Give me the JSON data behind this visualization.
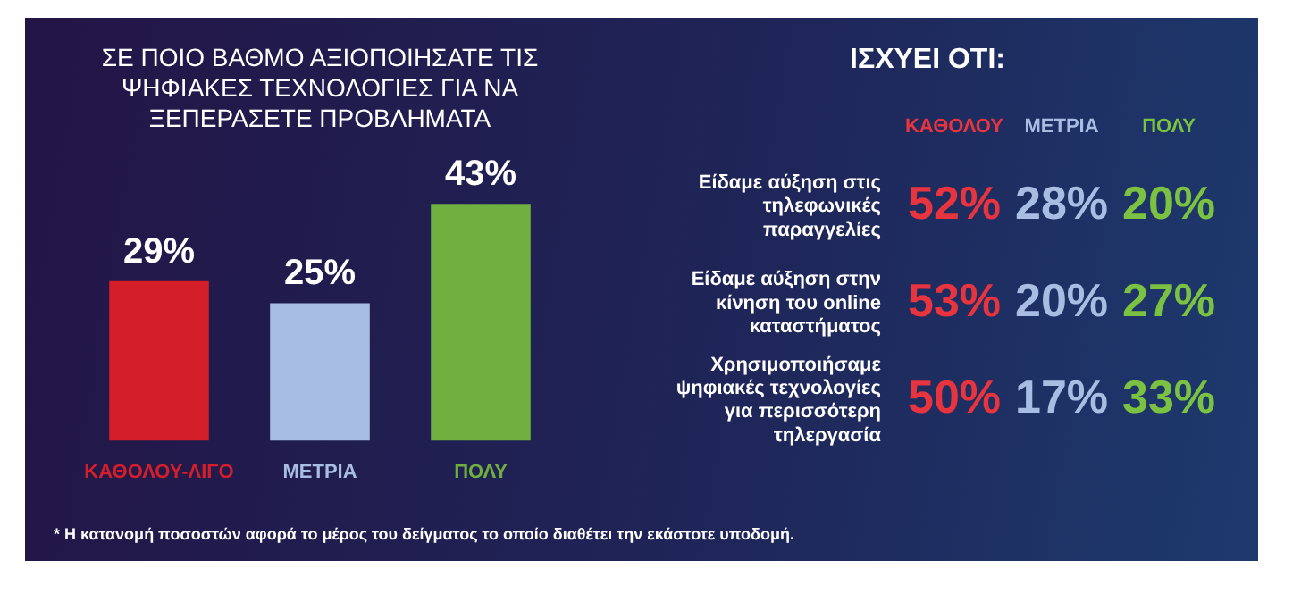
{
  "chart_data": [
    {
      "type": "bar",
      "title": "ΣΕ ΠΟΙΟ ΒΑΘΜΟ ΑΞΙΟΠΟΙΗΣΑΤΕ ΤΙΣ ΨΗΦΙΑΚΕΣ ΤΕΧΝΟΛΟΓΙΕΣ ΓΙΑ ΝΑ ΞΕΠΕΡΑΣΕΤΕ ΠΡΟΒΛΗΜΑΤΑ",
      "categories": [
        "ΚΑΘΟΛΟΥ-ΛΙΓΟ",
        "ΜΕΤΡΙΑ",
        "ΠΟΛΥ"
      ],
      "values": [
        29,
        25,
        43
      ],
      "colors": [
        "#d41f2b",
        "#a8bde2",
        "#6fb041"
      ],
      "data_labels": true,
      "value_labels": [
        "29%",
        "25%",
        "43%"
      ],
      "annotations": [
        "* Η κατανομή ποσοστών αφορά το μέρος του δείγματος το οποίο διαθέτει την εκάστοτε υποδομή."
      ]
    },
    {
      "type": "heatmap",
      "title": "ΙΣΧΥΕΙ ΟΤΙ:",
      "categories": [
        "ΚΑΘΟΛΟΥ",
        "ΜΕΤΡΙΑ",
        "ΠΟΛΥ"
      ],
      "y_categories": [
        "Είδαμε αύξηση στις τηλεφωνικές παραγγελίες",
        "Είδαμε αύξηση στην κίνηση του online καταστήματος",
        "Χρησιμοποιήσαμε ψηφιακές τεχνολογίες για περισσότερη τηλεργασία"
      ],
      "cells": [
        [
          52,
          28,
          20
        ],
        [
          53,
          20,
          27
        ],
        [
          50,
          17,
          33
        ]
      ],
      "cell_labels": [
        [
          "52%",
          "28%",
          "20%"
        ],
        [
          "53%",
          "20%",
          "27%"
        ],
        [
          "50%",
          "17%",
          "33%"
        ]
      ],
      "colors": [
        "#e8343f",
        "#a8bde2",
        "#7cc242"
      ]
    }
  ]
}
